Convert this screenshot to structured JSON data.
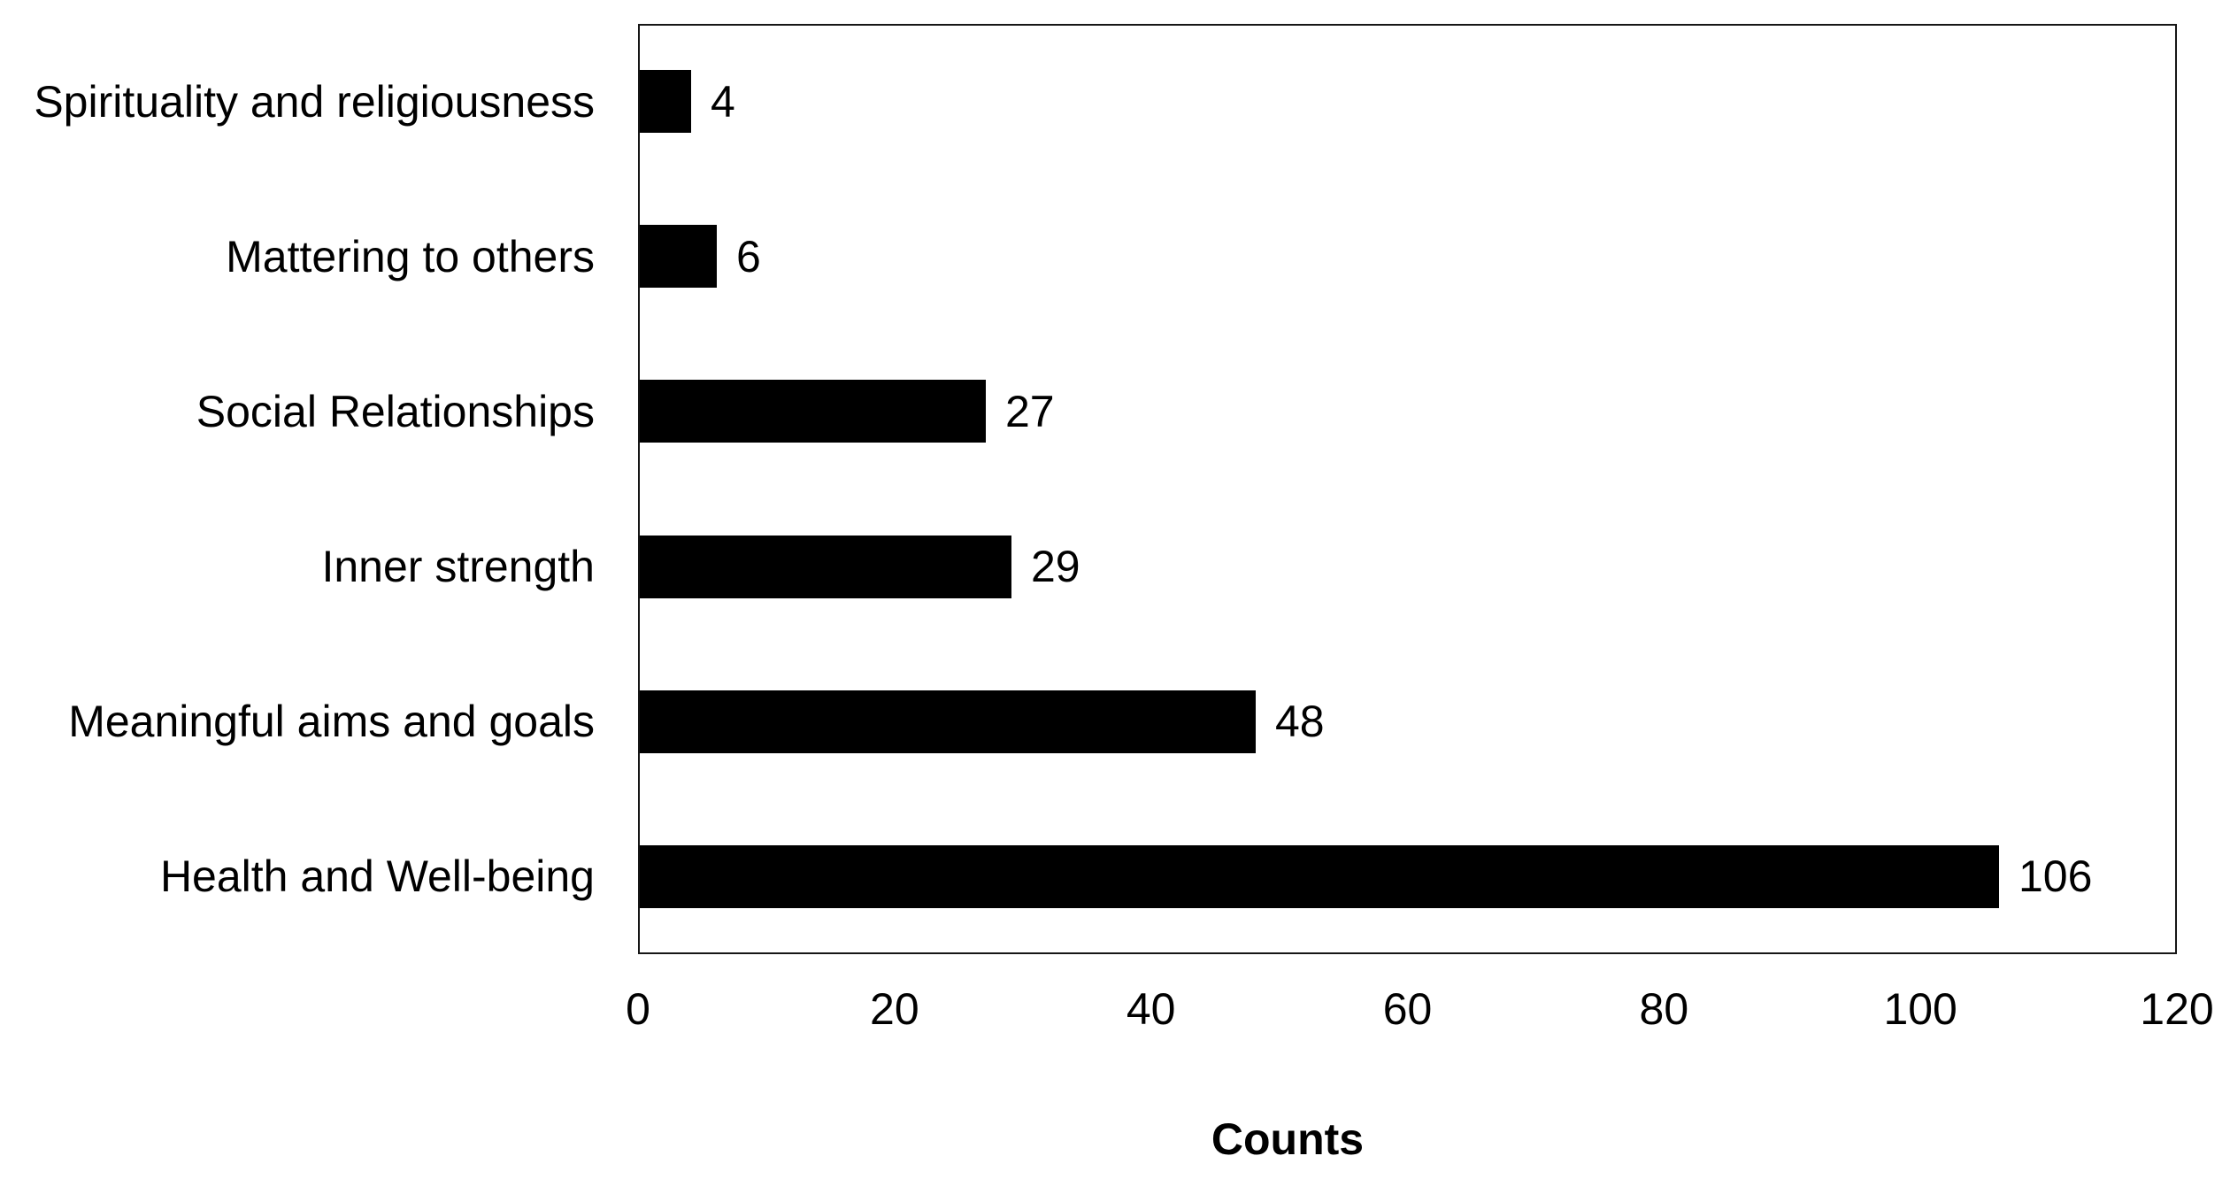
{
  "chart_data": {
    "type": "bar",
    "orientation": "horizontal",
    "categories": [
      "Spirituality and religiousness",
      "Mattering to others",
      "Social Relationships",
      "Inner strength",
      "Meaningful aims and goals",
      "Health and Well-being"
    ],
    "values": [
      4,
      6,
      27,
      29,
      48,
      106
    ],
    "title": "",
    "xlabel": "Counts",
    "ylabel": "",
    "xlim": [
      0,
      120
    ],
    "xticks": [
      0,
      20,
      40,
      60,
      80,
      100,
      120
    ],
    "grid": false,
    "legend": "none",
    "bar_color": "#000000",
    "plot_border_color": "#161616",
    "background_color": "#ffffff",
    "value_labels_shown": true
  }
}
